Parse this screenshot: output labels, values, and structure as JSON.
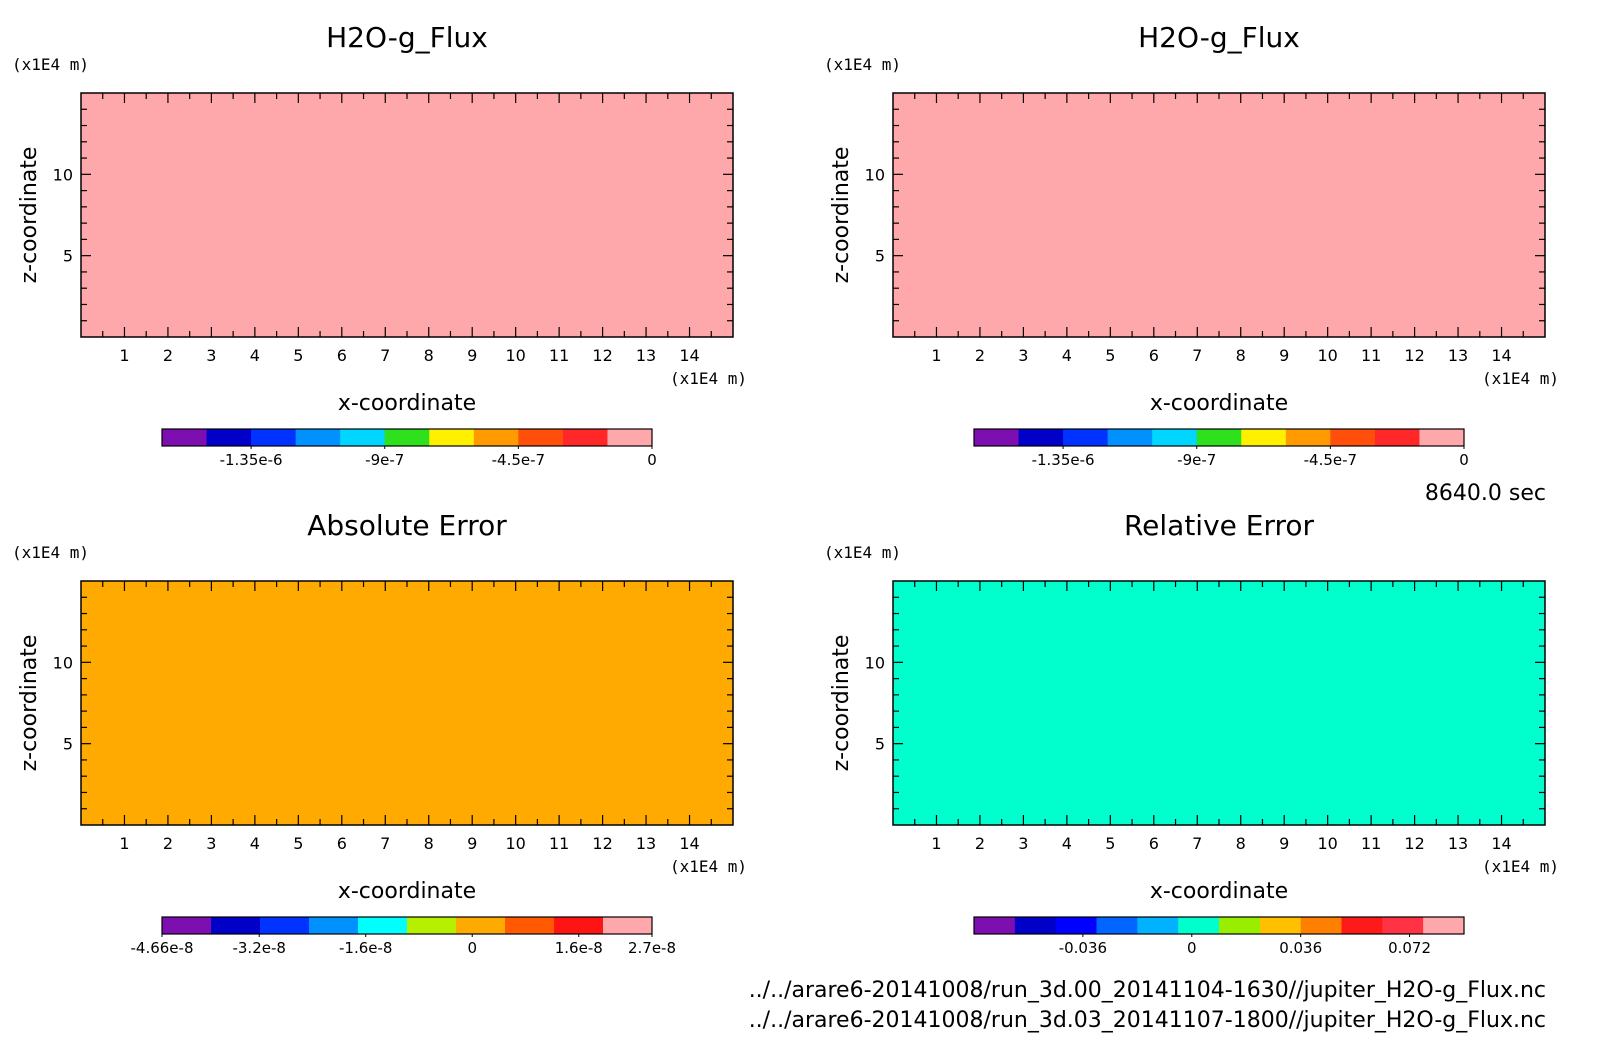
{
  "time_label": "8640.0 sec",
  "footer": {
    "file1": "../../arare6-20141008/run_3d.00_20141104-1630//jupiter_H2O-g_Flux.nc",
    "file2": "../../arare6-20141008/run_3d.03_20141107-1800//jupiter_H2O-g_Flux.nc"
  },
  "chart_data": [
    {
      "type": "heatmap",
      "title": "H2O-g_Flux",
      "xlabel": "x-coordinate",
      "ylabel": "z-coordinate",
      "x_unit": "(x1E4 m)",
      "y_unit": "(x1E4 m)",
      "xlim": [
        0,
        15
      ],
      "ylim": [
        0,
        15
      ],
      "x_ticks": [
        1,
        2,
        3,
        4,
        5,
        6,
        7,
        8,
        9,
        10,
        11,
        12,
        13,
        14
      ],
      "y_ticks": [
        5,
        10
      ],
      "fill_color": "#ffa8ab",
      "colorbar": {
        "colors": [
          "#7d0fb0",
          "#0000c8",
          "#0033ff",
          "#0091ff",
          "#00d6ff",
          "#2fe01c",
          "#fff000",
          "#ff9a00",
          "#ff4f0a",
          "#ff2727",
          "#ffa8ab"
        ],
        "tick_labels": [
          "-1.35e-6",
          "-9e-7",
          "-4.5e-7",
          "0"
        ],
        "tick_values": [
          -1.35e-06,
          -9e-07,
          -4.5e-07,
          0
        ],
        "range": [
          -1.65e-06,
          0
        ]
      }
    },
    {
      "type": "heatmap",
      "title": "H2O-g_Flux",
      "xlabel": "x-coordinate",
      "ylabel": "z-coordinate",
      "x_unit": "(x1E4 m)",
      "y_unit": "(x1E4 m)",
      "xlim": [
        0,
        15
      ],
      "ylim": [
        0,
        15
      ],
      "x_ticks": [
        1,
        2,
        3,
        4,
        5,
        6,
        7,
        8,
        9,
        10,
        11,
        12,
        13,
        14
      ],
      "y_ticks": [
        5,
        10
      ],
      "fill_color": "#ffa8ab",
      "colorbar": {
        "colors": [
          "#7d0fb0",
          "#0000c8",
          "#0033ff",
          "#0091ff",
          "#00d6ff",
          "#2fe01c",
          "#fff000",
          "#ff9a00",
          "#ff4f0a",
          "#ff2727",
          "#ffa8ab"
        ],
        "tick_labels": [
          "-1.35e-6",
          "-9e-7",
          "-4.5e-7",
          "0"
        ],
        "tick_values": [
          -1.35e-06,
          -9e-07,
          -4.5e-07,
          0
        ],
        "range": [
          -1.65e-06,
          0
        ]
      }
    },
    {
      "type": "heatmap",
      "title": "Absolute Error",
      "xlabel": "x-coordinate",
      "ylabel": "z-coordinate",
      "x_unit": "(x1E4 m)",
      "y_unit": "(x1E4 m)",
      "xlim": [
        0,
        15
      ],
      "ylim": [
        0,
        15
      ],
      "x_ticks": [
        1,
        2,
        3,
        4,
        5,
        6,
        7,
        8,
        9,
        10,
        11,
        12,
        13,
        14
      ],
      "y_ticks": [
        5,
        10
      ],
      "fill_color": "#ffaa00",
      "colorbar": {
        "colors": [
          "#7d0fb0",
          "#0000c8",
          "#0033ff",
          "#0091ff",
          "#00ffff",
          "#b6f000",
          "#ffaa00",
          "#ff5a00",
          "#ff1414",
          "#ffa8ab"
        ],
        "tick_labels": [
          "-4.66e-8",
          "-3.2e-8",
          "-1.6e-8",
          "0",
          "1.6e-8",
          "2.7e-8"
        ],
        "tick_values": [
          -4.66e-08,
          -3.2e-08,
          -1.6e-08,
          0,
          1.6e-08,
          2.7e-08
        ],
        "range": [
          -4.66e-08,
          2.7e-08
        ]
      }
    },
    {
      "type": "heatmap",
      "title": "Relative Error",
      "xlabel": "x-coordinate",
      "ylabel": "z-coordinate",
      "x_unit": "(x1E4 m)",
      "y_unit": "(x1E4 m)",
      "xlim": [
        0,
        15
      ],
      "ylim": [
        0,
        15
      ],
      "x_ticks": [
        1,
        2,
        3,
        4,
        5,
        6,
        7,
        8,
        9,
        10,
        11,
        12,
        13,
        14
      ],
      "y_ticks": [
        5,
        10
      ],
      "fill_color": "#00ffcc",
      "colorbar": {
        "colors": [
          "#7d0fb0",
          "#0000c8",
          "#0000ff",
          "#0066ff",
          "#00b2ff",
          "#00ffcc",
          "#99ee00",
          "#ffc000",
          "#ff8000",
          "#ff1a1a",
          "#ff3344",
          "#ffa8ab"
        ],
        "tick_labels": [
          "-0.036",
          "0",
          "0.036",
          "0.072"
        ],
        "tick_values": [
          -0.036,
          0,
          0.036,
          0.072
        ],
        "range": [
          -0.072,
          0.09
        ]
      }
    }
  ]
}
